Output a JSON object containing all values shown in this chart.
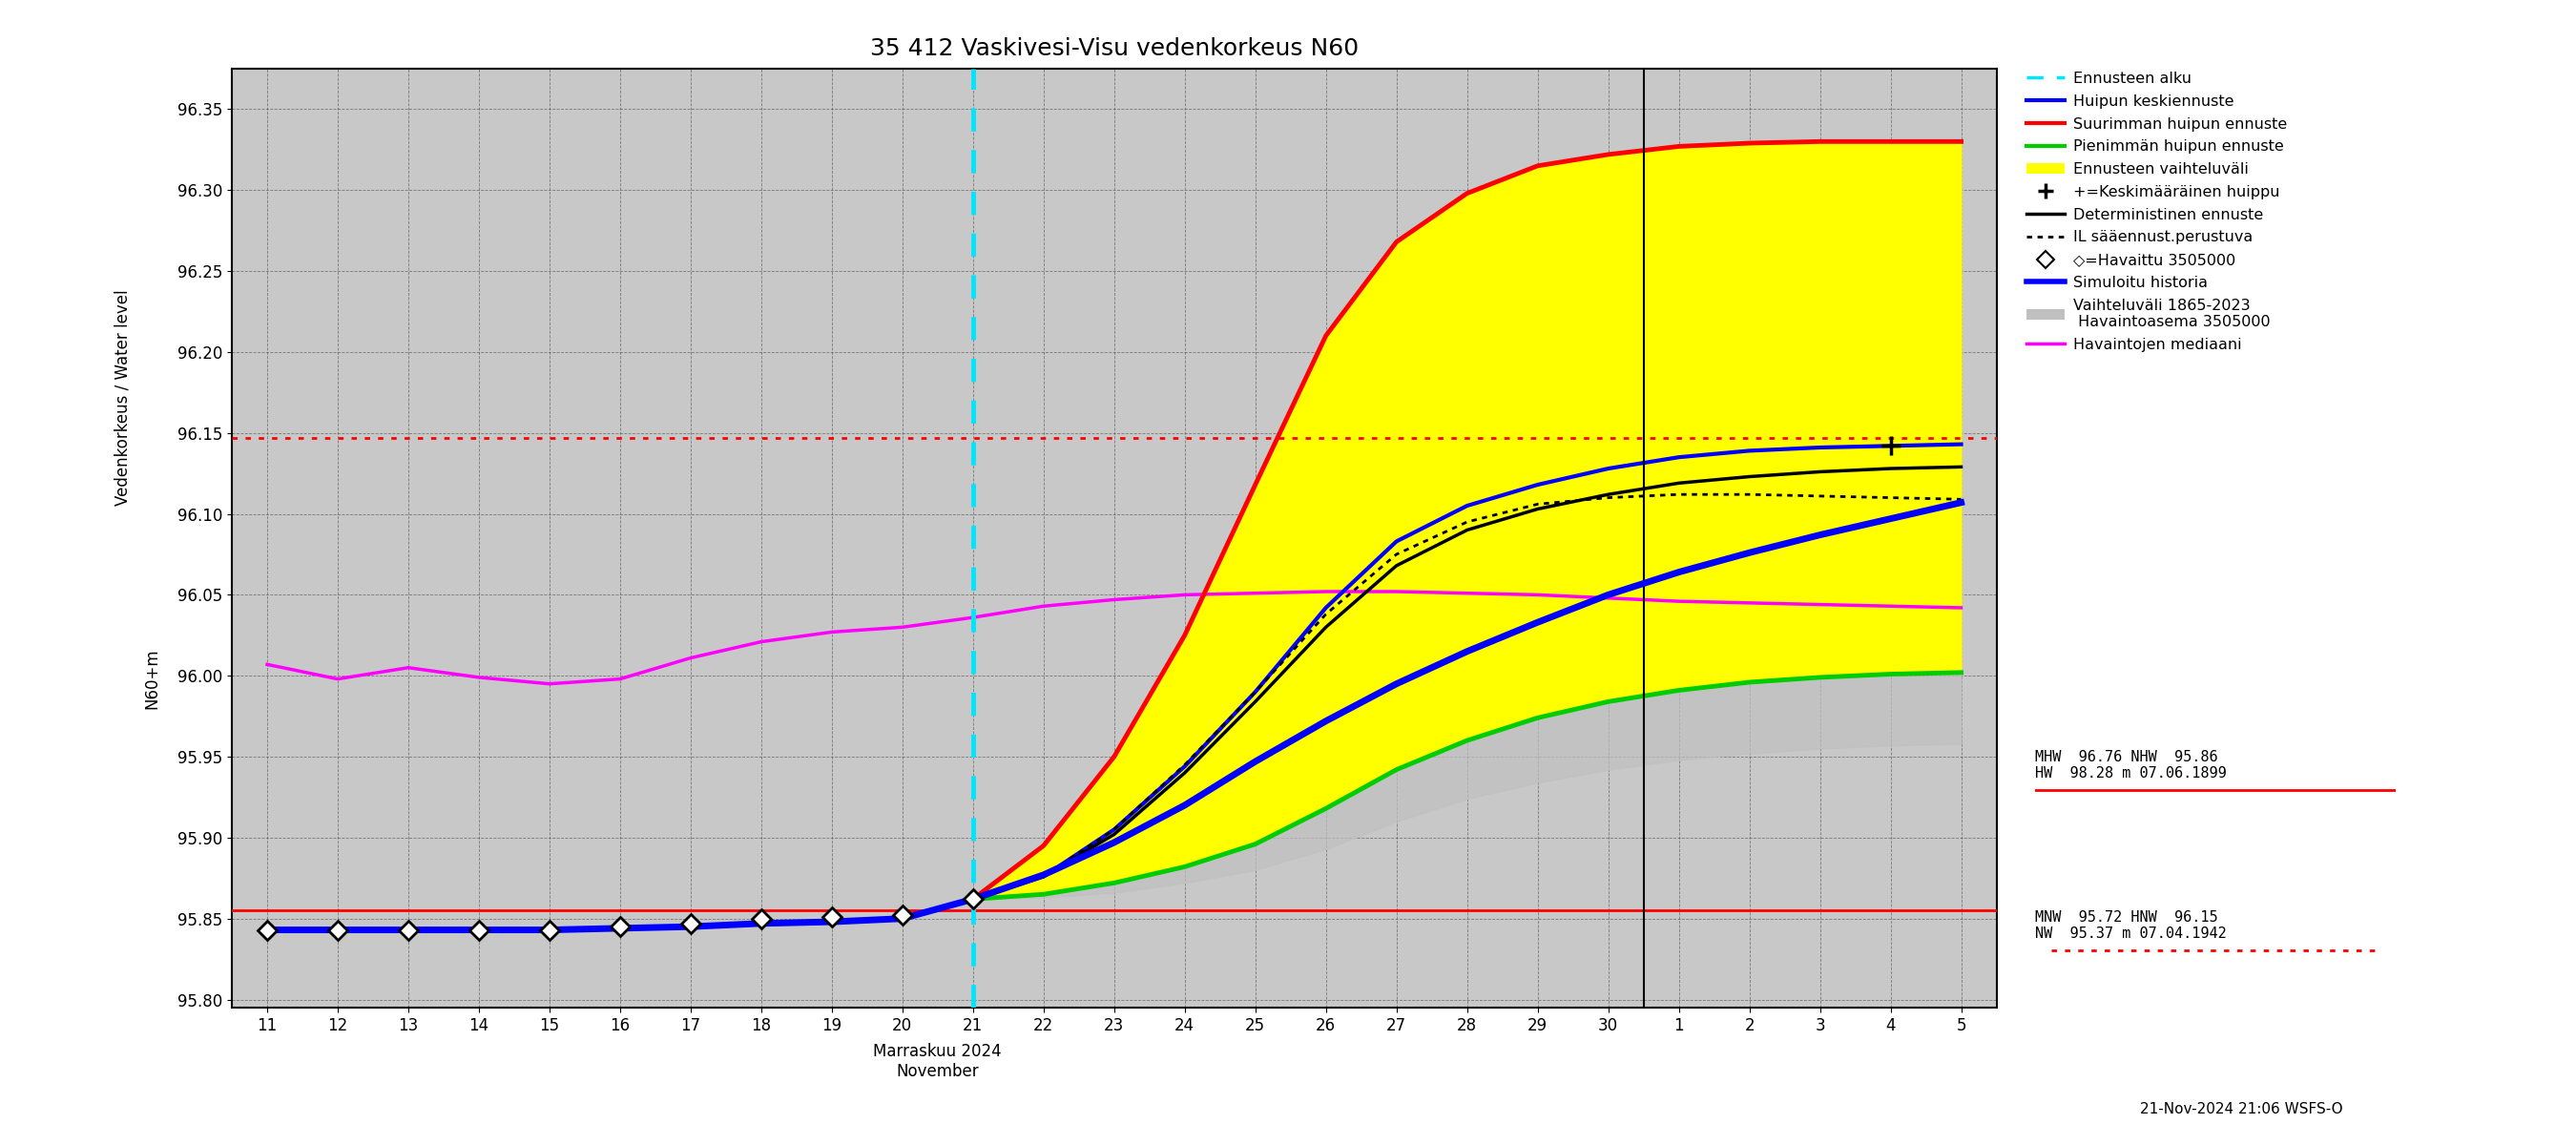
{
  "title": "35 412 Vaskivesi-Visu vedenkorkeus N60",
  "bg_color": "#c8c8c8",
  "ylim": [
    95.795,
    96.375
  ],
  "yticks": [
    95.8,
    95.85,
    95.9,
    95.95,
    96.0,
    96.05,
    96.1,
    96.15,
    96.2,
    96.25,
    96.3,
    96.35
  ],
  "xlim": [
    10.5,
    35.5
  ],
  "forecast_start_x": 21.0,
  "divider_x": 30.5,
  "red_solid_y": 95.855,
  "red_dashed_y": 96.147,
  "observed_x": [
    11,
    12,
    13,
    14,
    15,
    16,
    17,
    18,
    19,
    20,
    21
  ],
  "observed_y": [
    95.843,
    95.843,
    95.843,
    95.843,
    95.843,
    95.845,
    95.847,
    95.85,
    95.851,
    95.852,
    95.862
  ],
  "simulated_x": [
    11,
    12,
    13,
    14,
    15,
    16,
    17,
    18,
    19,
    20,
    21,
    22,
    23,
    24,
    25,
    26,
    27,
    28,
    29,
    30,
    31,
    32,
    33,
    34,
    35
  ],
  "simulated_y": [
    95.843,
    95.843,
    95.843,
    95.843,
    95.843,
    95.844,
    95.845,
    95.847,
    95.848,
    95.85,
    95.862,
    95.877,
    95.897,
    95.92,
    95.947,
    95.972,
    95.995,
    96.015,
    96.033,
    96.05,
    96.064,
    96.076,
    96.087,
    96.097,
    96.107
  ],
  "max_forecast_x": [
    21,
    22,
    23,
    24,
    25,
    26,
    27,
    28,
    29,
    30,
    31,
    32,
    33,
    34,
    35
  ],
  "max_forecast_y": [
    95.862,
    95.895,
    95.95,
    96.025,
    96.118,
    96.21,
    96.268,
    96.298,
    96.315,
    96.322,
    96.327,
    96.329,
    96.33,
    96.33,
    96.33
  ],
  "min_forecast_x": [
    21,
    22,
    23,
    24,
    25,
    26,
    27,
    28,
    29,
    30,
    31,
    32,
    33,
    34,
    35
  ],
  "min_forecast_y": [
    95.862,
    95.865,
    95.872,
    95.882,
    95.896,
    95.918,
    95.942,
    95.96,
    95.974,
    95.984,
    95.991,
    95.996,
    95.999,
    96.001,
    96.002
  ],
  "mean_forecast_x": [
    21,
    22,
    23,
    24,
    25,
    26,
    27,
    28,
    29,
    30,
    31,
    32,
    33,
    34,
    35
  ],
  "mean_forecast_y": [
    95.862,
    95.876,
    95.905,
    95.944,
    95.99,
    96.042,
    96.083,
    96.105,
    96.118,
    96.128,
    96.135,
    96.139,
    96.141,
    96.142,
    96.143
  ],
  "det_forecast_x": [
    21,
    22,
    23,
    24,
    25,
    26,
    27,
    28,
    29,
    30,
    31,
    32,
    33,
    34,
    35
  ],
  "det_forecast_y": [
    95.862,
    95.876,
    95.902,
    95.94,
    95.984,
    96.03,
    96.068,
    96.09,
    96.103,
    96.112,
    96.119,
    96.123,
    96.126,
    96.128,
    96.129
  ],
  "il_forecast_x": [
    21,
    22,
    23,
    24,
    25,
    26,
    27,
    28,
    29,
    30,
    31,
    32,
    33,
    34,
    35
  ],
  "il_forecast_y": [
    95.862,
    95.876,
    95.905,
    95.945,
    95.99,
    96.038,
    96.075,
    96.095,
    96.106,
    96.11,
    96.112,
    96.112,
    96.111,
    96.11,
    96.109
  ],
  "median_x": [
    11,
    12,
    13,
    14,
    15,
    16,
    17,
    18,
    19,
    20,
    21,
    22,
    23,
    24,
    25,
    26,
    27,
    28,
    29,
    30,
    31,
    32,
    33,
    34,
    35
  ],
  "median_y": [
    96.007,
    95.998,
    96.005,
    95.999,
    95.995,
    95.998,
    96.011,
    96.021,
    96.027,
    96.03,
    96.036,
    96.043,
    96.047,
    96.05,
    96.051,
    96.052,
    96.052,
    96.051,
    96.05,
    96.048,
    96.046,
    96.045,
    96.044,
    96.043,
    96.042
  ],
  "mean_peak_x": 34,
  "mean_peak_y": 96.142,
  "colors": {
    "vline": "#00e5ff",
    "max_forecast": "#ff0000",
    "min_forecast": "#00cc00",
    "mean_forecast": "#0000ff",
    "fill_between": "#ffff00",
    "det_forecast": "#000000",
    "il_forecast": "#000000",
    "simulated": "#0000ff",
    "median": "#ff00ff",
    "red_solid": "#ff0000",
    "red_dashed": "#ff0000",
    "grid": "#555555",
    "vaihteluvali_band": "#c0c0c0"
  },
  "vaihteluvali_x": [
    21,
    22,
    23,
    24,
    25,
    26,
    27,
    28,
    29,
    30,
    31,
    32,
    33,
    34,
    35
  ],
  "vaihteluvali_upper": [
    95.862,
    95.88,
    95.918,
    95.966,
    96.018,
    96.068,
    96.105,
    96.128,
    96.14,
    96.148,
    96.153,
    96.156,
    96.157,
    96.158,
    96.158
  ],
  "vaihteluvali_lower": [
    95.862,
    95.863,
    95.866,
    95.872,
    95.88,
    95.893,
    95.91,
    95.924,
    95.934,
    95.942,
    95.948,
    95.952,
    95.955,
    95.957,
    95.958
  ],
  "footer_text": "21-Nov-2024 21:06 WSFS-O",
  "stats_text1": "MHW  96.76 NHW  95.86\nHW  98.28 m 07.06.1899",
  "stats_text2": "MNW  95.72 HNW  96.15\nNW  95.37 m 07.04.1942"
}
